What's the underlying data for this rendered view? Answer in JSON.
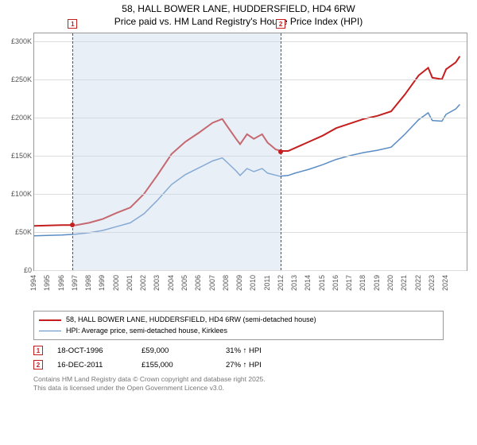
{
  "title_line1": "58, HALL BOWER LANE, HUDDERSFIELD, HD4 6RW",
  "title_line2": "Price paid vs. HM Land Registry's House Price Index (HPI)",
  "chart": {
    "type": "line",
    "background_color": "#ffffff",
    "grid_color": "#dddddd",
    "border_color": "#999999",
    "shade_color": "rgba(200,215,235,0.4)",
    "x_min": 1994,
    "x_max": 2025.5,
    "y_min": 0,
    "y_max": 310000,
    "y_ticks": [
      0,
      50000,
      100000,
      150000,
      200000,
      250000,
      300000
    ],
    "y_tick_labels": [
      "£0",
      "£50K",
      "£100K",
      "£150K",
      "£200K",
      "£250K",
      "£300K"
    ],
    "x_ticks": [
      1994,
      1995,
      1996,
      1997,
      1998,
      1999,
      2000,
      2001,
      2002,
      2003,
      2004,
      2005,
      2006,
      2007,
      2008,
      2009,
      2010,
      2011,
      2012,
      2013,
      2014,
      2015,
      2016,
      2017,
      2018,
      2019,
      2020,
      2021,
      2022,
      2023,
      2024
    ],
    "series": [
      {
        "id": "property",
        "color": "#c41e1e",
        "width": 2,
        "label": "58, HALL BOWER LANE, HUDDERSFIELD, HD4 6RW (semi-detached house)",
        "points": [
          [
            1994,
            58000
          ],
          [
            1995,
            58500
          ],
          [
            1996,
            59000
          ],
          [
            1996.8,
            59000
          ],
          [
            1997,
            58800
          ],
          [
            1998,
            62000
          ],
          [
            1999,
            67000
          ],
          [
            2000,
            75000
          ],
          [
            2001,
            82000
          ],
          [
            2002,
            100000
          ],
          [
            2003,
            125000
          ],
          [
            2004,
            152000
          ],
          [
            2005,
            168000
          ],
          [
            2006,
            180000
          ],
          [
            2007,
            193000
          ],
          [
            2007.7,
            198000
          ],
          [
            2008,
            190000
          ],
          [
            2008.7,
            172000
          ],
          [
            2009,
            165000
          ],
          [
            2009.5,
            178000
          ],
          [
            2010,
            172000
          ],
          [
            2010.6,
            178000
          ],
          [
            2011,
            167000
          ],
          [
            2011.6,
            158000
          ],
          [
            2012,
            156000
          ],
          [
            2012.5,
            156000
          ],
          [
            2013,
            160000
          ],
          [
            2014,
            168000
          ],
          [
            2015,
            176000
          ],
          [
            2016,
            186000
          ],
          [
            2017,
            192000
          ],
          [
            2018,
            198000
          ],
          [
            2019,
            202000
          ],
          [
            2020,
            208000
          ],
          [
            2021,
            230000
          ],
          [
            2022,
            255000
          ],
          [
            2022.7,
            265000
          ],
          [
            2023,
            252000
          ],
          [
            2023.7,
            250000
          ],
          [
            2024,
            263000
          ],
          [
            2024.7,
            272000
          ],
          [
            2025,
            280000
          ]
        ]
      },
      {
        "id": "hpi",
        "color": "#5a8cc4",
        "width": 1.5,
        "label": "HPI: Average price, semi-detached house, Kirklees",
        "points": [
          [
            1994,
            45000
          ],
          [
            1995,
            45500
          ],
          [
            1996,
            46000
          ],
          [
            1997,
            47000
          ],
          [
            1998,
            49000
          ],
          [
            1999,
            52000
          ],
          [
            2000,
            57000
          ],
          [
            2001,
            62000
          ],
          [
            2002,
            74000
          ],
          [
            2003,
            92000
          ],
          [
            2004,
            112000
          ],
          [
            2005,
            125000
          ],
          [
            2006,
            134000
          ],
          [
            2007,
            143000
          ],
          [
            2007.7,
            147000
          ],
          [
            2008,
            142000
          ],
          [
            2008.7,
            130000
          ],
          [
            2009,
            124000
          ],
          [
            2009.5,
            133000
          ],
          [
            2010,
            129000
          ],
          [
            2010.6,
            133000
          ],
          [
            2011,
            127000
          ],
          [
            2011.9,
            123000
          ],
          [
            2012.5,
            124000
          ],
          [
            2013,
            127000
          ],
          [
            2014,
            132000
          ],
          [
            2015,
            138000
          ],
          [
            2016,
            145000
          ],
          [
            2017,
            150000
          ],
          [
            2018,
            154000
          ],
          [
            2019,
            157000
          ],
          [
            2020,
            161000
          ],
          [
            2021,
            178000
          ],
          [
            2022,
            197000
          ],
          [
            2022.7,
            206000
          ],
          [
            2023,
            196000
          ],
          [
            2023.7,
            195000
          ],
          [
            2024,
            204000
          ],
          [
            2024.7,
            211000
          ],
          [
            2025,
            217000
          ]
        ]
      }
    ],
    "markers": [
      {
        "n": "1",
        "date_x": 1996.8,
        "price": 59000,
        "color": "#c41e1e"
      },
      {
        "n": "2",
        "date_x": 2011.96,
        "price": 155000,
        "color": "#c41e1e"
      }
    ]
  },
  "sales": [
    {
      "n": "1",
      "date": "18-OCT-1996",
      "price": "£59,000",
      "diff": "31% ↑ HPI",
      "color": "#c41e1e"
    },
    {
      "n": "2",
      "date": "16-DEC-2011",
      "price": "£155,000",
      "diff": "27% ↑ HPI",
      "color": "#c41e1e"
    }
  ],
  "footer1": "Contains HM Land Registry data © Crown copyright and database right 2025.",
  "footer2": "This data is licensed under the Open Government Licence v3.0."
}
